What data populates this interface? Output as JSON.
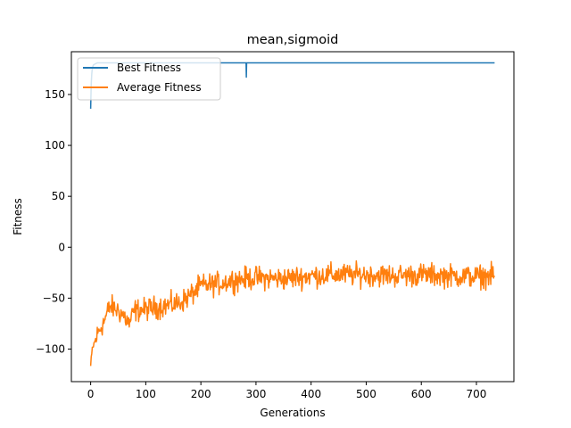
{
  "chart_data": {
    "type": "line",
    "title": "mean,sigmoid",
    "xlabel": "Generations",
    "ylabel": "Fitness",
    "xlim": [
      -35,
      768
    ],
    "ylim": [
      -132,
      192
    ],
    "xticks": [
      0,
      100,
      200,
      300,
      400,
      500,
      600,
      700
    ],
    "yticks": [
      -100,
      -50,
      0,
      50,
      100,
      150
    ],
    "grid": false,
    "legend_position": "top-left",
    "series": [
      {
        "name": "Best Fitness",
        "color": "#1f77b4",
        "points": [
          [
            0,
            136
          ],
          [
            1,
            160
          ],
          [
            2,
            170
          ],
          [
            3,
            176
          ],
          [
            5,
            179
          ],
          [
            8,
            180
          ],
          [
            12,
            181
          ],
          [
            282,
            181
          ],
          [
            282.5,
            167
          ],
          [
            283,
            181
          ],
          [
            733,
            181
          ]
        ]
      },
      {
        "name": "Average Fitness",
        "color": "#ff7f0e",
        "anchors": [
          [
            0,
            -117
          ],
          [
            3,
            -100
          ],
          [
            8,
            -92
          ],
          [
            15,
            -82
          ],
          [
            25,
            -72
          ],
          [
            35,
            -58
          ],
          [
            50,
            -62
          ],
          [
            60,
            -67
          ],
          [
            70,
            -75
          ],
          [
            80,
            -62
          ],
          [
            100,
            -61
          ],
          [
            130,
            -58
          ],
          [
            160,
            -55
          ],
          [
            180,
            -48
          ],
          [
            200,
            -38
          ],
          [
            230,
            -36
          ],
          [
            260,
            -32
          ],
          [
            300,
            -30
          ],
          [
            350,
            -31
          ],
          [
            400,
            -28
          ],
          [
            450,
            -27
          ],
          [
            500,
            -27
          ],
          [
            550,
            -28
          ],
          [
            600,
            -27
          ],
          [
            650,
            -28
          ],
          [
            700,
            -29
          ],
          [
            733,
            -28
          ]
        ],
        "noise_amplitude": 5.5
      }
    ]
  }
}
